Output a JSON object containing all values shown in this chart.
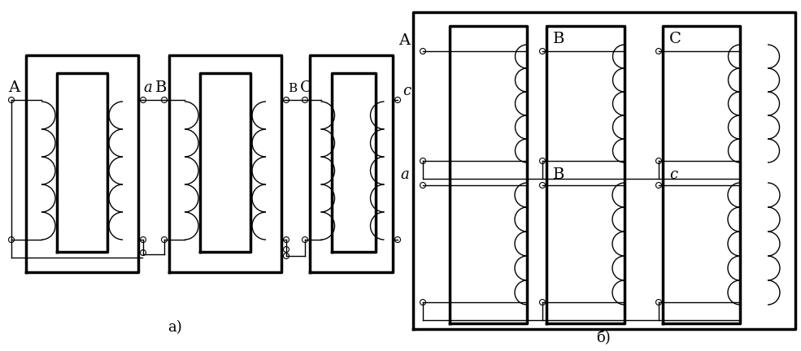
{
  "bg_color": "#ffffff",
  "line_color": "#000000",
  "lw_thin": 1.0,
  "lw_thick": 2.5,
  "fig_width": 9.85,
  "fig_height": 4.32,
  "label_A": "A",
  "label_a": "a",
  "label_B": "B",
  "label_C": "C",
  "label_c": "c",
  "caption_a": "a)",
  "caption_b": "б)"
}
